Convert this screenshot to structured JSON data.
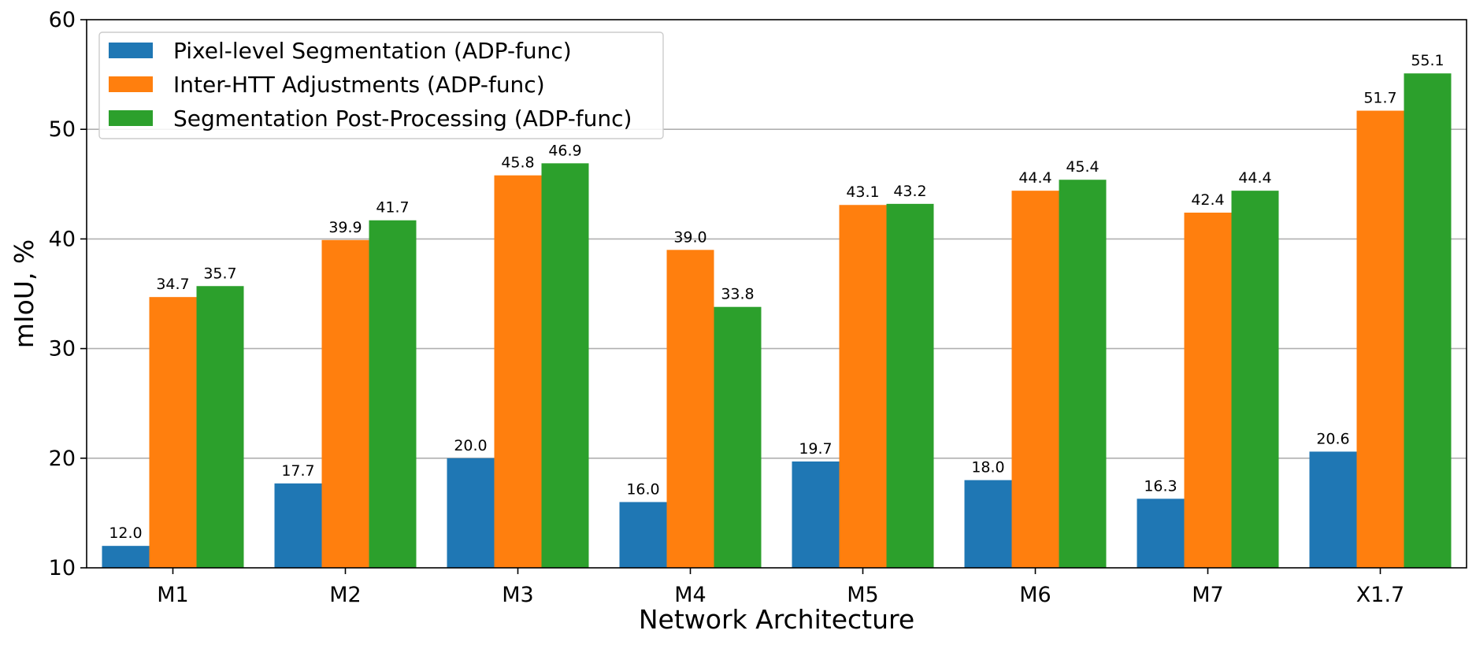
{
  "chart_data": {
    "type": "bar",
    "title": "",
    "xlabel": "Network Architecture",
    "ylabel": "mIoU, %",
    "ylim": [
      10,
      60
    ],
    "yticks": [
      "10",
      "20",
      "30",
      "40",
      "50",
      "60"
    ],
    "grid": "horizontal",
    "legend_position": "top-left",
    "categories": [
      "M1",
      "M2",
      "M3",
      "M4",
      "M5",
      "M6",
      "M7",
      "X1.7"
    ],
    "series": [
      {
        "name": "Pixel-level Segmentation (ADP-func)",
        "color": "#1f77b4",
        "values": [
          12.0,
          17.7,
          20.0,
          16.0,
          19.7,
          18.0,
          16.3,
          20.6
        ],
        "labels": [
          "12.0",
          "17.7",
          "20.0",
          "16.0",
          "19.7",
          "18.0",
          "16.3",
          "20.6"
        ]
      },
      {
        "name": "Inter-HTT Adjustments (ADP-func)",
        "color": "#ff7f0e",
        "values": [
          34.7,
          39.9,
          45.8,
          39.0,
          43.1,
          44.4,
          42.4,
          51.7
        ],
        "labels": [
          "34.7",
          "39.9",
          "45.8",
          "39.0",
          "43.1",
          "44.4",
          "42.4",
          "51.7"
        ]
      },
      {
        "name": "Segmentation Post-Processing (ADP-func)",
        "color": "#2ca02c",
        "values": [
          35.7,
          41.7,
          46.9,
          33.8,
          43.2,
          45.4,
          44.4,
          55.1
        ],
        "labels": [
          "35.7",
          "41.7",
          "46.9",
          "33.8",
          "43.2",
          "45.4",
          "44.4",
          "55.1"
        ]
      }
    ]
  }
}
